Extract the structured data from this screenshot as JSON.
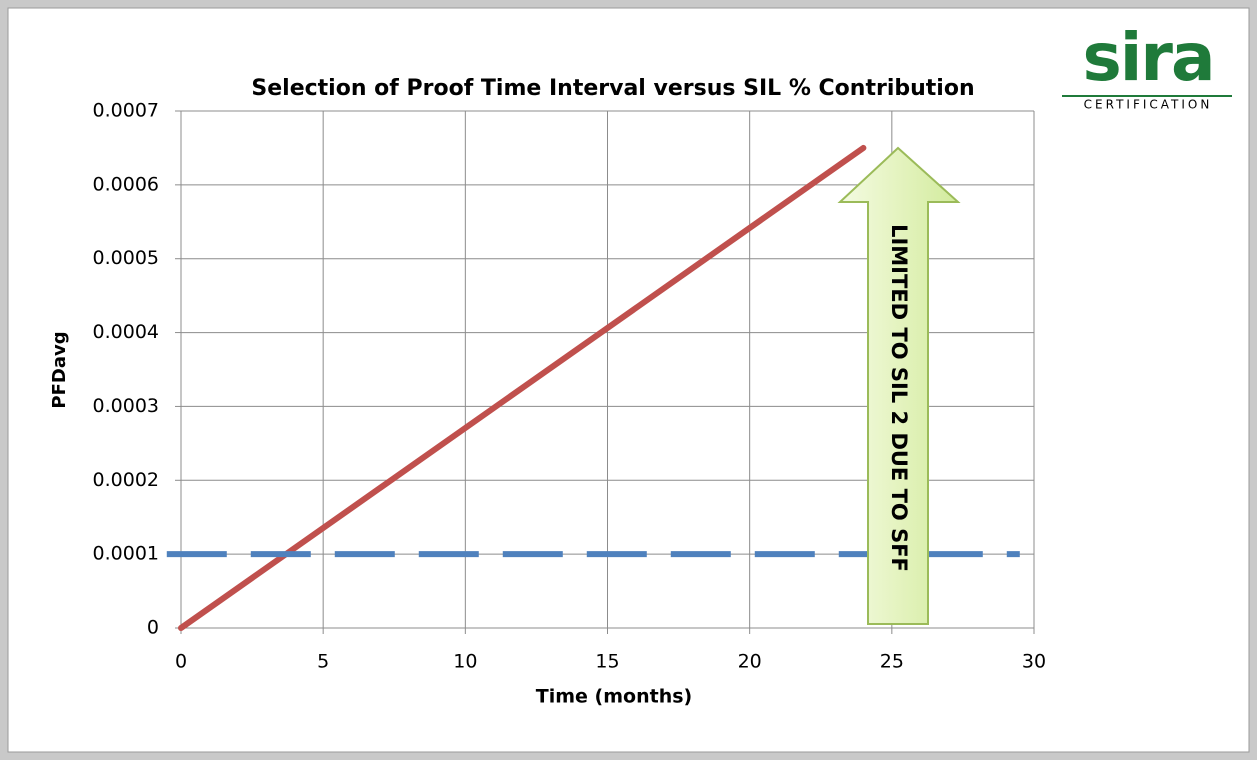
{
  "chart_data": {
    "type": "line",
    "title": "Selection of Proof Time Interval versus SIL % Contribution",
    "x_label": "Time (months)",
    "y_label": "PFDavg",
    "xlim": [
      0,
      30
    ],
    "xticks": [
      0,
      5,
      10,
      15,
      20,
      25,
      30
    ],
    "ylim": [
      0,
      0.0007
    ],
    "yticks": [
      0,
      0.0001,
      0.0002,
      0.0003,
      0.0004,
      0.0005,
      0.0006,
      0.0007
    ],
    "grid": true,
    "series": [
      {
        "color": "#c0504d",
        "line_style": "solid",
        "x": [
          0,
          24
        ],
        "values": [
          0,
          0.00065
        ]
      },
      {
        "color": "#4f81bd",
        "line_style": "dashed",
        "x": [
          -0.5,
          29.5
        ],
        "values": [
          0.0001,
          0.0001
        ]
      }
    ],
    "annotation": "LIMITED TO SIL 2 DUE TO SFF"
  },
  "logo": {
    "name": "sira",
    "tagline": "CERTIFICATION"
  }
}
